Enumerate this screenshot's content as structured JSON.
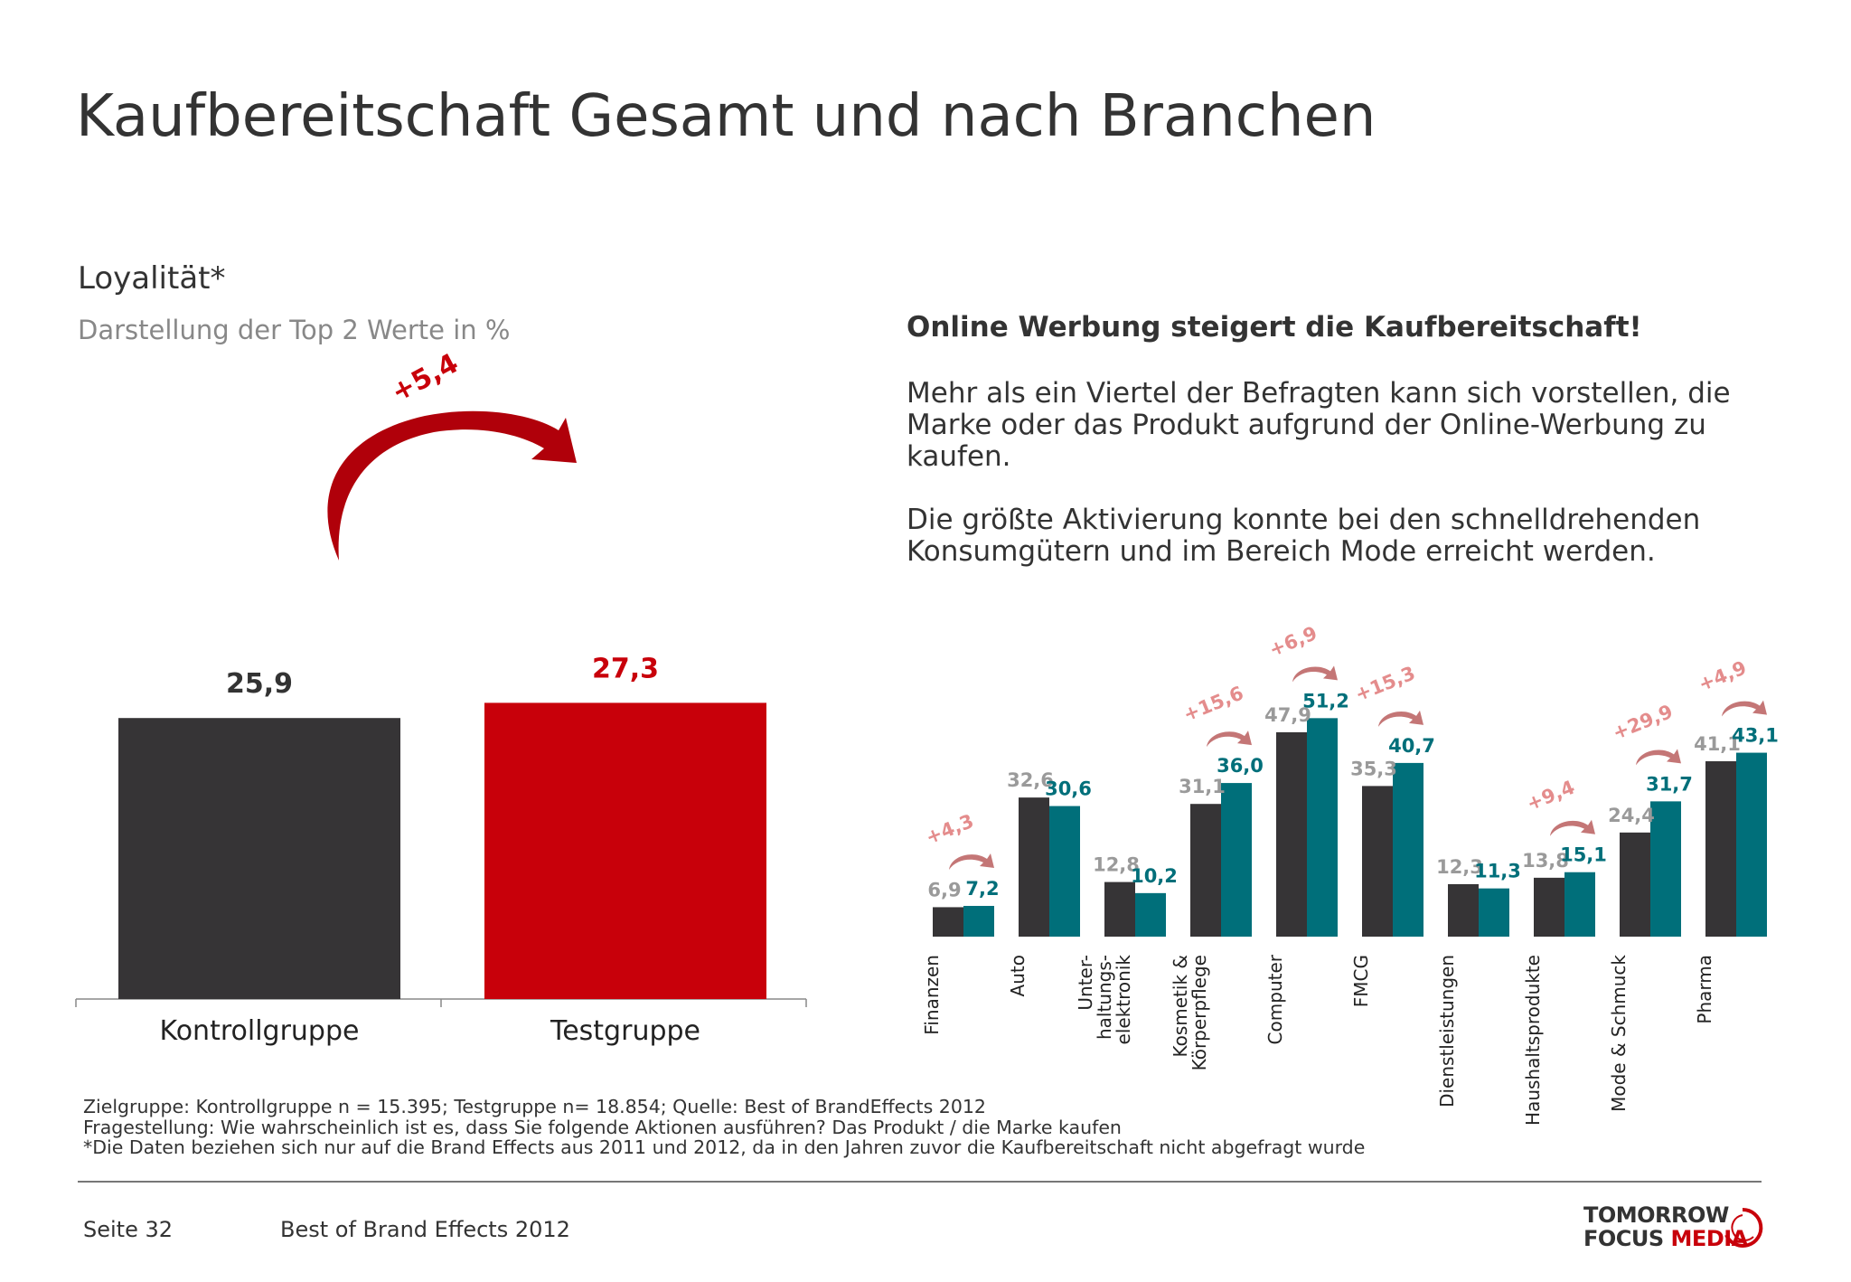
{
  "title": "Kaufbereitschaft Gesamt und nach Branchen",
  "subtitle": "Loyalität*",
  "subnote": "Darstellung der Top 2 Werte in %",
  "headline": "Online Werbung steigert die Kaufbereitschaft!",
  "paragraph1": "Mehr als ein Viertel der Befragten kann sich vorstellen, die Marke oder das Produkt aufgrund der Online-Werbung zu kaufen.",
  "paragraph2": "Die größte Aktivierung konnte bei den schnelldrehenden Konsumgütern und im Bereich Mode erreicht werden.",
  "footnotes": [
    "Zielgruppe: Kontrollgruppe n = 15.395; Testgruppe n= 18.854; Quelle: Best of BrandEffects 2012",
    "Fragestellung: Wie wahrscheinlich ist es, dass Sie folgende Aktionen ausführen? Das Produkt / die Marke kaufen",
    "*Die Daten beziehen sich nur auf die Brand Effects  aus 2011 und 2012, da in den Jahren zuvor die Kaufbereitschaft nicht abgefragt wurde"
  ],
  "footer": {
    "page": "Seite 32",
    "publication": "Best of Brand Effects 2012"
  },
  "logo": {
    "line1": "TOMORROW",
    "line2a": "FOCUS ",
    "line2b": "MEDIA"
  },
  "colors": {
    "control": "#363436",
    "test_main": "#c8000a",
    "test_branch": "#006f7a",
    "label_control": "#9a9a9a",
    "uplift": "#e48c8c"
  },
  "chart_data": [
    {
      "type": "bar",
      "categories": [
        "Kontrollgruppe",
        "Testgruppe"
      ],
      "values": [
        25.9,
        27.3
      ],
      "value_labels": [
        "25,9",
        "27,3"
      ],
      "uplift": "+5,4",
      "ylim": [
        0,
        35
      ]
    },
    {
      "type": "bar",
      "categories": [
        "Finanzen",
        "Auto",
        "Unter-\nhaltungs-\nelektronik",
        "Kosmetik &\nKörperpflege",
        "Computer",
        "FMCG",
        "Dienstleistungen",
        "Haushaltsprodukte",
        "Mode & Schmuck",
        "Pharma"
      ],
      "series": [
        {
          "values": [
            6.9,
            32.6,
            12.8,
            31.1,
            47.9,
            35.3,
            12.3,
            13.8,
            24.4,
            41.1
          ],
          "labels": [
            "6,9",
            "32,6",
            "12,8",
            "31,1",
            "47,9",
            "35,3",
            "12,3",
            "13,8",
            "24,4",
            "41,1"
          ]
        },
        {
          "values": [
            7.2,
            30.6,
            10.2,
            36.0,
            51.2,
            40.7,
            11.3,
            15.1,
            31.7,
            43.1
          ],
          "labels": [
            "7,2",
            "30,6",
            "10,2",
            "36,0",
            "51,2",
            "40,7",
            "11,3",
            "15,1",
            "31,7",
            "43,1"
          ]
        }
      ],
      "uplifts": [
        "+4,3",
        null,
        null,
        "+15,6",
        "+6,9",
        "+15,3",
        null,
        "+9,4",
        "+29,9",
        "+4,9"
      ],
      "ylim": [
        0,
        60
      ]
    }
  ]
}
